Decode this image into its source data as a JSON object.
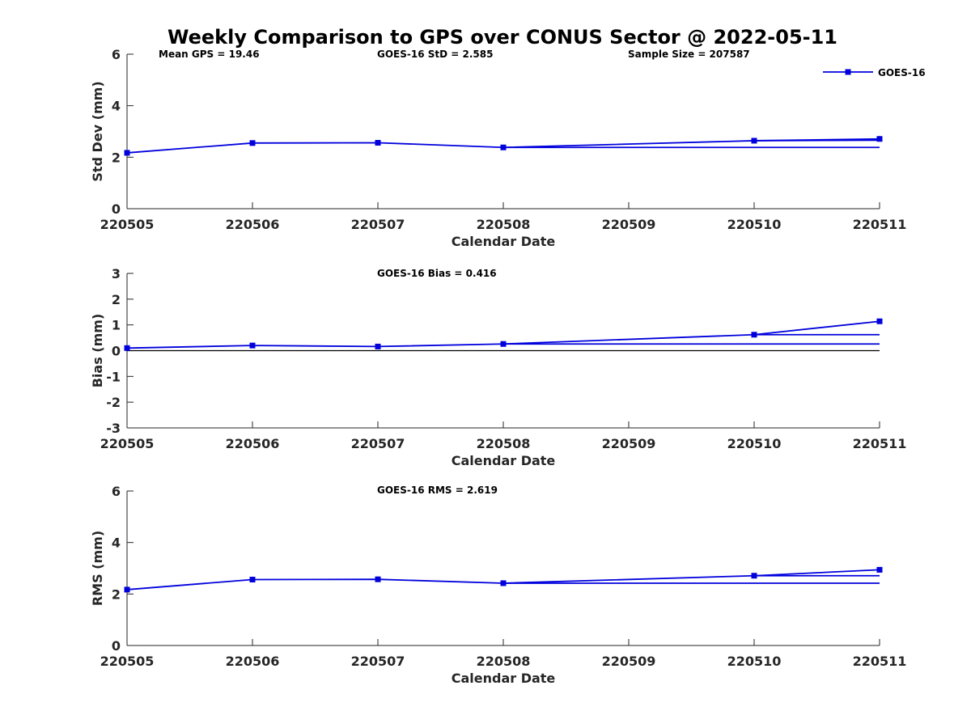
{
  "chart_data": {
    "type": "line",
    "title": "Weekly Comparison to GPS over CONUS Sector @ 2022-05-11",
    "series_color": "#0000dd",
    "zero_line_color": "#000000",
    "legend": {
      "label": "GOES-16",
      "position": "top-right"
    },
    "categories": [
      "220505",
      "220506",
      "220507",
      "220508",
      "220509",
      "220510",
      "220511"
    ],
    "panels": [
      {
        "id": "std",
        "ylabel": "Std Dev (mm)",
        "xlabel": "Calendar Date",
        "ylim": [
          0,
          6
        ],
        "yticks": [
          "0",
          "2",
          "4",
          "6"
        ],
        "yvals": [
          0,
          2,
          4,
          6
        ],
        "annotations": [
          "Mean GPS = 19.46",
          "GOES-16 StD = 2.585",
          "Sample Size = 207587"
        ],
        "points": [
          [
            0,
            2.17
          ],
          [
            1,
            2.55
          ],
          [
            2,
            2.56
          ],
          [
            3,
            2.38
          ],
          [
            5,
            2.64
          ],
          [
            6,
            2.71
          ]
        ],
        "extra_lines": [
          {
            "from": [
              3,
              2.38
            ],
            "to": [
              6,
              2.38
            ]
          },
          {
            "from": [
              5,
              2.64
            ],
            "to": [
              6,
              2.66
            ]
          }
        ],
        "zero_line": false
      },
      {
        "id": "bias",
        "ylabel": "Bias (mm)",
        "xlabel": "Calendar Date",
        "ylim": [
          -3,
          3
        ],
        "yticks": [
          "-3",
          "-2",
          "-1",
          "0",
          "1",
          "2",
          "3"
        ],
        "yvals": [
          -3,
          -2,
          -1,
          0,
          1,
          2,
          3
        ],
        "annotations": [
          "GOES-16 Bias  = 0.416"
        ],
        "points": [
          [
            0,
            0.1
          ],
          [
            1,
            0.2
          ],
          [
            2,
            0.16
          ],
          [
            3,
            0.26
          ],
          [
            5,
            0.62
          ],
          [
            6,
            1.14
          ]
        ],
        "extra_lines": [
          {
            "from": [
              3,
              0.26
            ],
            "to": [
              6,
              0.26
            ]
          },
          {
            "from": [
              5,
              0.62
            ],
            "to": [
              6,
              0.62
            ]
          }
        ],
        "zero_line": true
      },
      {
        "id": "rms",
        "ylabel": "RMS (mm)",
        "xlabel": "Calendar Date",
        "ylim": [
          0,
          6
        ],
        "yticks": [
          "0",
          "2",
          "4",
          "6"
        ],
        "yvals": [
          0,
          2,
          4,
          6
        ],
        "annotations": [
          "GOES-16 RMS = 2.619"
        ],
        "points": [
          [
            0,
            2.17
          ],
          [
            1,
            2.56
          ],
          [
            2,
            2.57
          ],
          [
            3,
            2.42
          ],
          [
            5,
            2.71
          ],
          [
            6,
            2.94
          ]
        ],
        "extra_lines": [
          {
            "from": [
              3,
              2.42
            ],
            "to": [
              6,
              2.42
            ]
          },
          {
            "from": [
              5,
              2.71
            ],
            "to": [
              6,
              2.71
            ]
          }
        ],
        "zero_line": false
      }
    ]
  }
}
